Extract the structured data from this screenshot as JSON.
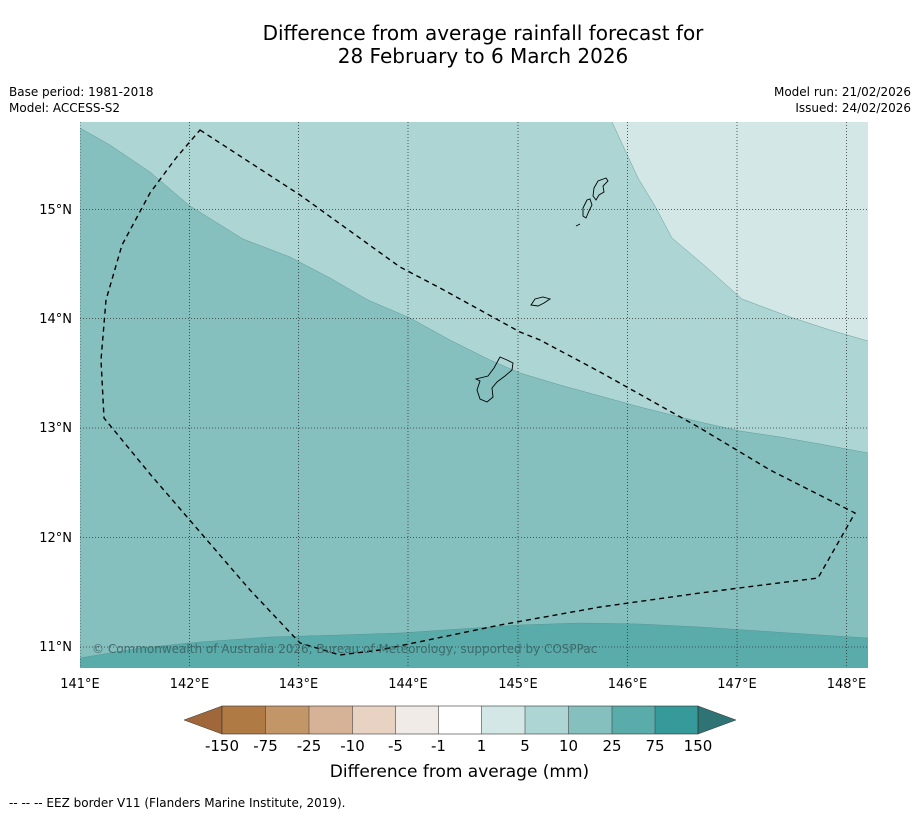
{
  "title": {
    "line1": "Difference from average rainfall forecast for",
    "line2": "28 February to 6 March 2026"
  },
  "meta_left": {
    "base_period": "Base period: 1981-2018",
    "model": "Model: ACCESS-S2"
  },
  "meta_right": {
    "model_run": "Model run: 21/02/2026",
    "issued": "Issued: 24/02/2026"
  },
  "map": {
    "lon_ticks": [
      "141°E",
      "142°E",
      "143°E",
      "144°E",
      "145°E",
      "146°E",
      "147°E",
      "148°E"
    ],
    "lat_ticks": [
      "15°N",
      "14°N",
      "13°N",
      "12°N",
      "11°N"
    ],
    "copyright": "© Commonwealth of Australia 2026, Bureau of Meteorology, supported by COSPPac",
    "extent": {
      "lon_min": 141.0,
      "lon_max": 148.2,
      "lat_min": 10.8,
      "lat_max": 15.8
    }
  },
  "colorbar": {
    "ticks": [
      "-150",
      "-75",
      "-25",
      "-10",
      "-5",
      "-1",
      "1",
      "5",
      "10",
      "25",
      "75",
      "150"
    ],
    "colors": [
      "#a0683a",
      "#b07a44",
      "#c39668",
      "#d6b396",
      "#e8d3c2",
      "#f0ebe7",
      "#ffffff",
      "#d3e8e6",
      "#acd5d4",
      "#85c0bf",
      "#5aacab",
      "#36999a",
      "#2f7474"
    ],
    "label": "Difference from average (mm)"
  },
  "map_colors": {
    "class_1_5": "#d3e8e6",
    "class_5_10": "#acd5d4",
    "class_10_25": "#85c0bf",
    "class_25_75": "#5aacab"
  },
  "footnote": "--  --  -- EEZ border V11 (Flanders Marine Institute, 2019)."
}
